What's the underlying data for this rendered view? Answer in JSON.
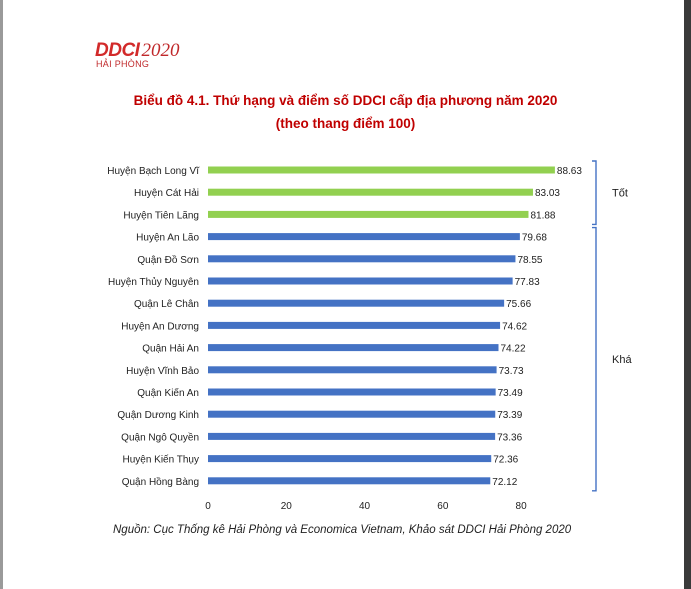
{
  "logo": {
    "brand": "DDCI",
    "year": "2020",
    "subtitle": "HẢI PHÒNG"
  },
  "title_line1": "Biểu đồ 4.1. Thứ hạng và điểm số DDCI cấp địa phương năm 2020",
  "title_line2": "(theo thang điểm 100)",
  "source": "Nguồn: Cục Thống kê Hải Phòng và Economica Vietnam, Khảo sát DDCI Hải Phòng 2020",
  "colors": {
    "tot": "#92d050",
    "kha": "#4472c4",
    "title": "#c00000",
    "bracket": "#4472c4"
  },
  "chart_data": {
    "type": "bar",
    "orientation": "horizontal",
    "categories": [
      "Huyện Bạch Long Vĩ",
      "Huyện Cát Hải",
      "Huyện Tiên Lãng",
      "Huyện An Lão",
      "Quận Đồ Sơn",
      "Huyện Thủy Nguyên",
      "Quận Lê Chân",
      "Huyện An Dương",
      "Quận Hải An",
      "Huyện Vĩnh Bảo",
      "Quận Kiến An",
      "Quận Dương Kinh",
      "Quận Ngô Quyền",
      "Huyện Kiến Thụy",
      "Quận Hồng Bàng"
    ],
    "values": [
      88.63,
      83.03,
      81.88,
      79.68,
      78.55,
      77.83,
      75.66,
      74.62,
      74.22,
      73.73,
      73.49,
      73.39,
      73.36,
      72.36,
      72.12
    ],
    "value_labels": [
      "88.63",
      "83.03",
      "81.88",
      "79.68",
      "78.55",
      "77.83",
      "75.66",
      "74.62",
      "74.22",
      "73.73",
      "73.49",
      "73.39",
      "73.36",
      "72.36",
      "72.12"
    ],
    "groups": [
      {
        "label": "Tốt",
        "first": 0,
        "last": 2,
        "color": "#92d050"
      },
      {
        "label": "Khá",
        "first": 3,
        "last": 14,
        "color": "#4472c4"
      }
    ],
    "xticks": [
      0,
      20,
      40,
      60,
      80
    ],
    "xlim": [
      0,
      80
    ],
    "grid": false,
    "legend": "none"
  }
}
